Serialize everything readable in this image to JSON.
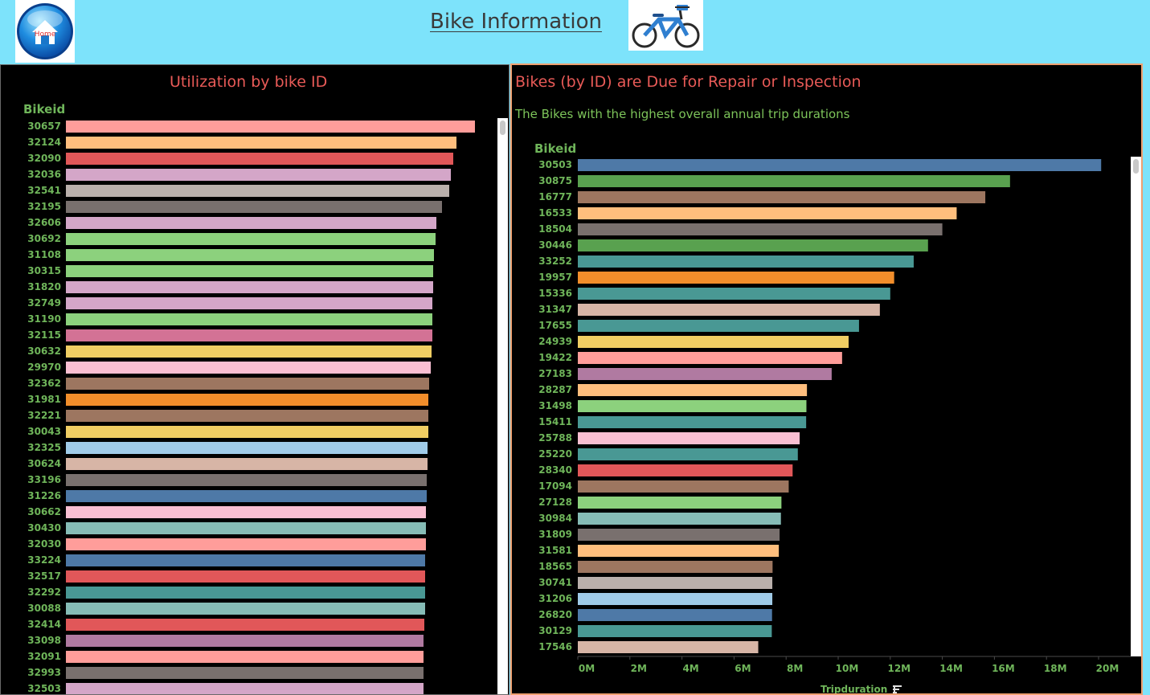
{
  "header": {
    "title": "Bike Information",
    "home_label": "Home"
  },
  "colors": {
    "background": "#7de3fb",
    "panel_bg": "#000000",
    "title_red": "#e85a57",
    "label_green": "#6fb55a",
    "right_border": "#f0a070"
  },
  "chart_data": [
    {
      "type": "bar",
      "orientation": "horizontal",
      "title": "Utilization by bike ID",
      "ylabel": "Bikeid",
      "categories": [
        "30657",
        "32124",
        "32090",
        "32036",
        "32541",
        "32195",
        "32606",
        "30692",
        "31108",
        "30315",
        "31820",
        "32749",
        "31190",
        "32115",
        "30632",
        "29970",
        "32362",
        "31981",
        "32221",
        "30043",
        "32325",
        "30624",
        "33196",
        "31226",
        "30662",
        "30430",
        "32030",
        "33224",
        "32517",
        "32292",
        "30088",
        "32414",
        "33098",
        "32091",
        "32993",
        "32503"
      ],
      "values": [
        509,
        486,
        482,
        479,
        477,
        468,
        461,
        460,
        458,
        457,
        457,
        456,
        456,
        456,
        455,
        454,
        452,
        451,
        451,
        451,
        450,
        450,
        449,
        449,
        448,
        448,
        448,
        447,
        447,
        447,
        447,
        446,
        445,
        445,
        445,
        445
      ],
      "colors": [
        "#ff9d9a",
        "#ffbe7d",
        "#e15759",
        "#d4a6c8",
        "#bab0ac",
        "#79706e",
        "#d4a6c8",
        "#8cd17d",
        "#8cd17d",
        "#8cd17d",
        "#d4a6c8",
        "#d4a6c8",
        "#8cd17d",
        "#d37295",
        "#f1ce63",
        "#fabfd2",
        "#9d7660",
        "#f28e2b",
        "#9d7660",
        "#f1ce63",
        "#a0cbe8",
        "#d7b5a6",
        "#79706e",
        "#4e79a7",
        "#fabfd2",
        "#86bcb6",
        "#ff9d9a",
        "#4e79a7",
        "#e15759",
        "#499894",
        "#86bcb6",
        "#e15759",
        "#b07aa1",
        "#ff9d9a",
        "#79706e",
        "#d4a6c8"
      ]
    },
    {
      "type": "bar",
      "orientation": "horizontal",
      "title": "Bikes (by ID) are Due for Repair or Inspection",
      "subtitle": "The Bikes with the highest overall annual trip durations",
      "ylabel": "Bikeid",
      "xlabel": "Tripduration",
      "xlim": [
        0,
        21000000
      ],
      "xticks": [
        "0M",
        "2M",
        "4M",
        "6M",
        "8M",
        "10M",
        "12M",
        "14M",
        "16M",
        "18M",
        "20M"
      ],
      "categories": [
        "30503",
        "30875",
        "16777",
        "16533",
        "18504",
        "30446",
        "33252",
        "19957",
        "15336",
        "31347",
        "17655",
        "24939",
        "19422",
        "27183",
        "28287",
        "31498",
        "15411",
        "25788",
        "25220",
        "28340",
        "17094",
        "27128",
        "30984",
        "31809",
        "31581",
        "18565",
        "30741",
        "31206",
        "26820",
        "30129",
        "17546"
      ],
      "values": [
        20100000,
        16600000,
        15650000,
        14550000,
        14000000,
        13450000,
        12900000,
        12150000,
        12000000,
        11600000,
        10800000,
        10400000,
        10150000,
        9750000,
        8800000,
        8780000,
        8770000,
        8520000,
        8450000,
        8250000,
        8100000,
        7820000,
        7800000,
        7750000,
        7720000,
        7480000,
        7470000,
        7470000,
        7460000,
        7450000,
        6930000
      ],
      "colors": [
        "#4e79a7",
        "#59a14f",
        "#9d7660",
        "#ffbe7d",
        "#79706e",
        "#59a14f",
        "#499894",
        "#f28e2b",
        "#499894",
        "#d7b5a6",
        "#499894",
        "#f1ce63",
        "#ff9d9a",
        "#b07aa1",
        "#ffbe7d",
        "#8cd17d",
        "#499894",
        "#fabfd2",
        "#499894",
        "#e15759",
        "#9d7660",
        "#8cd17d",
        "#86bcb6",
        "#79706e",
        "#ffbe7d",
        "#9d7660",
        "#bab0ac",
        "#a0cbe8",
        "#4e79a7",
        "#499894",
        "#d7b5a6"
      ]
    }
  ]
}
